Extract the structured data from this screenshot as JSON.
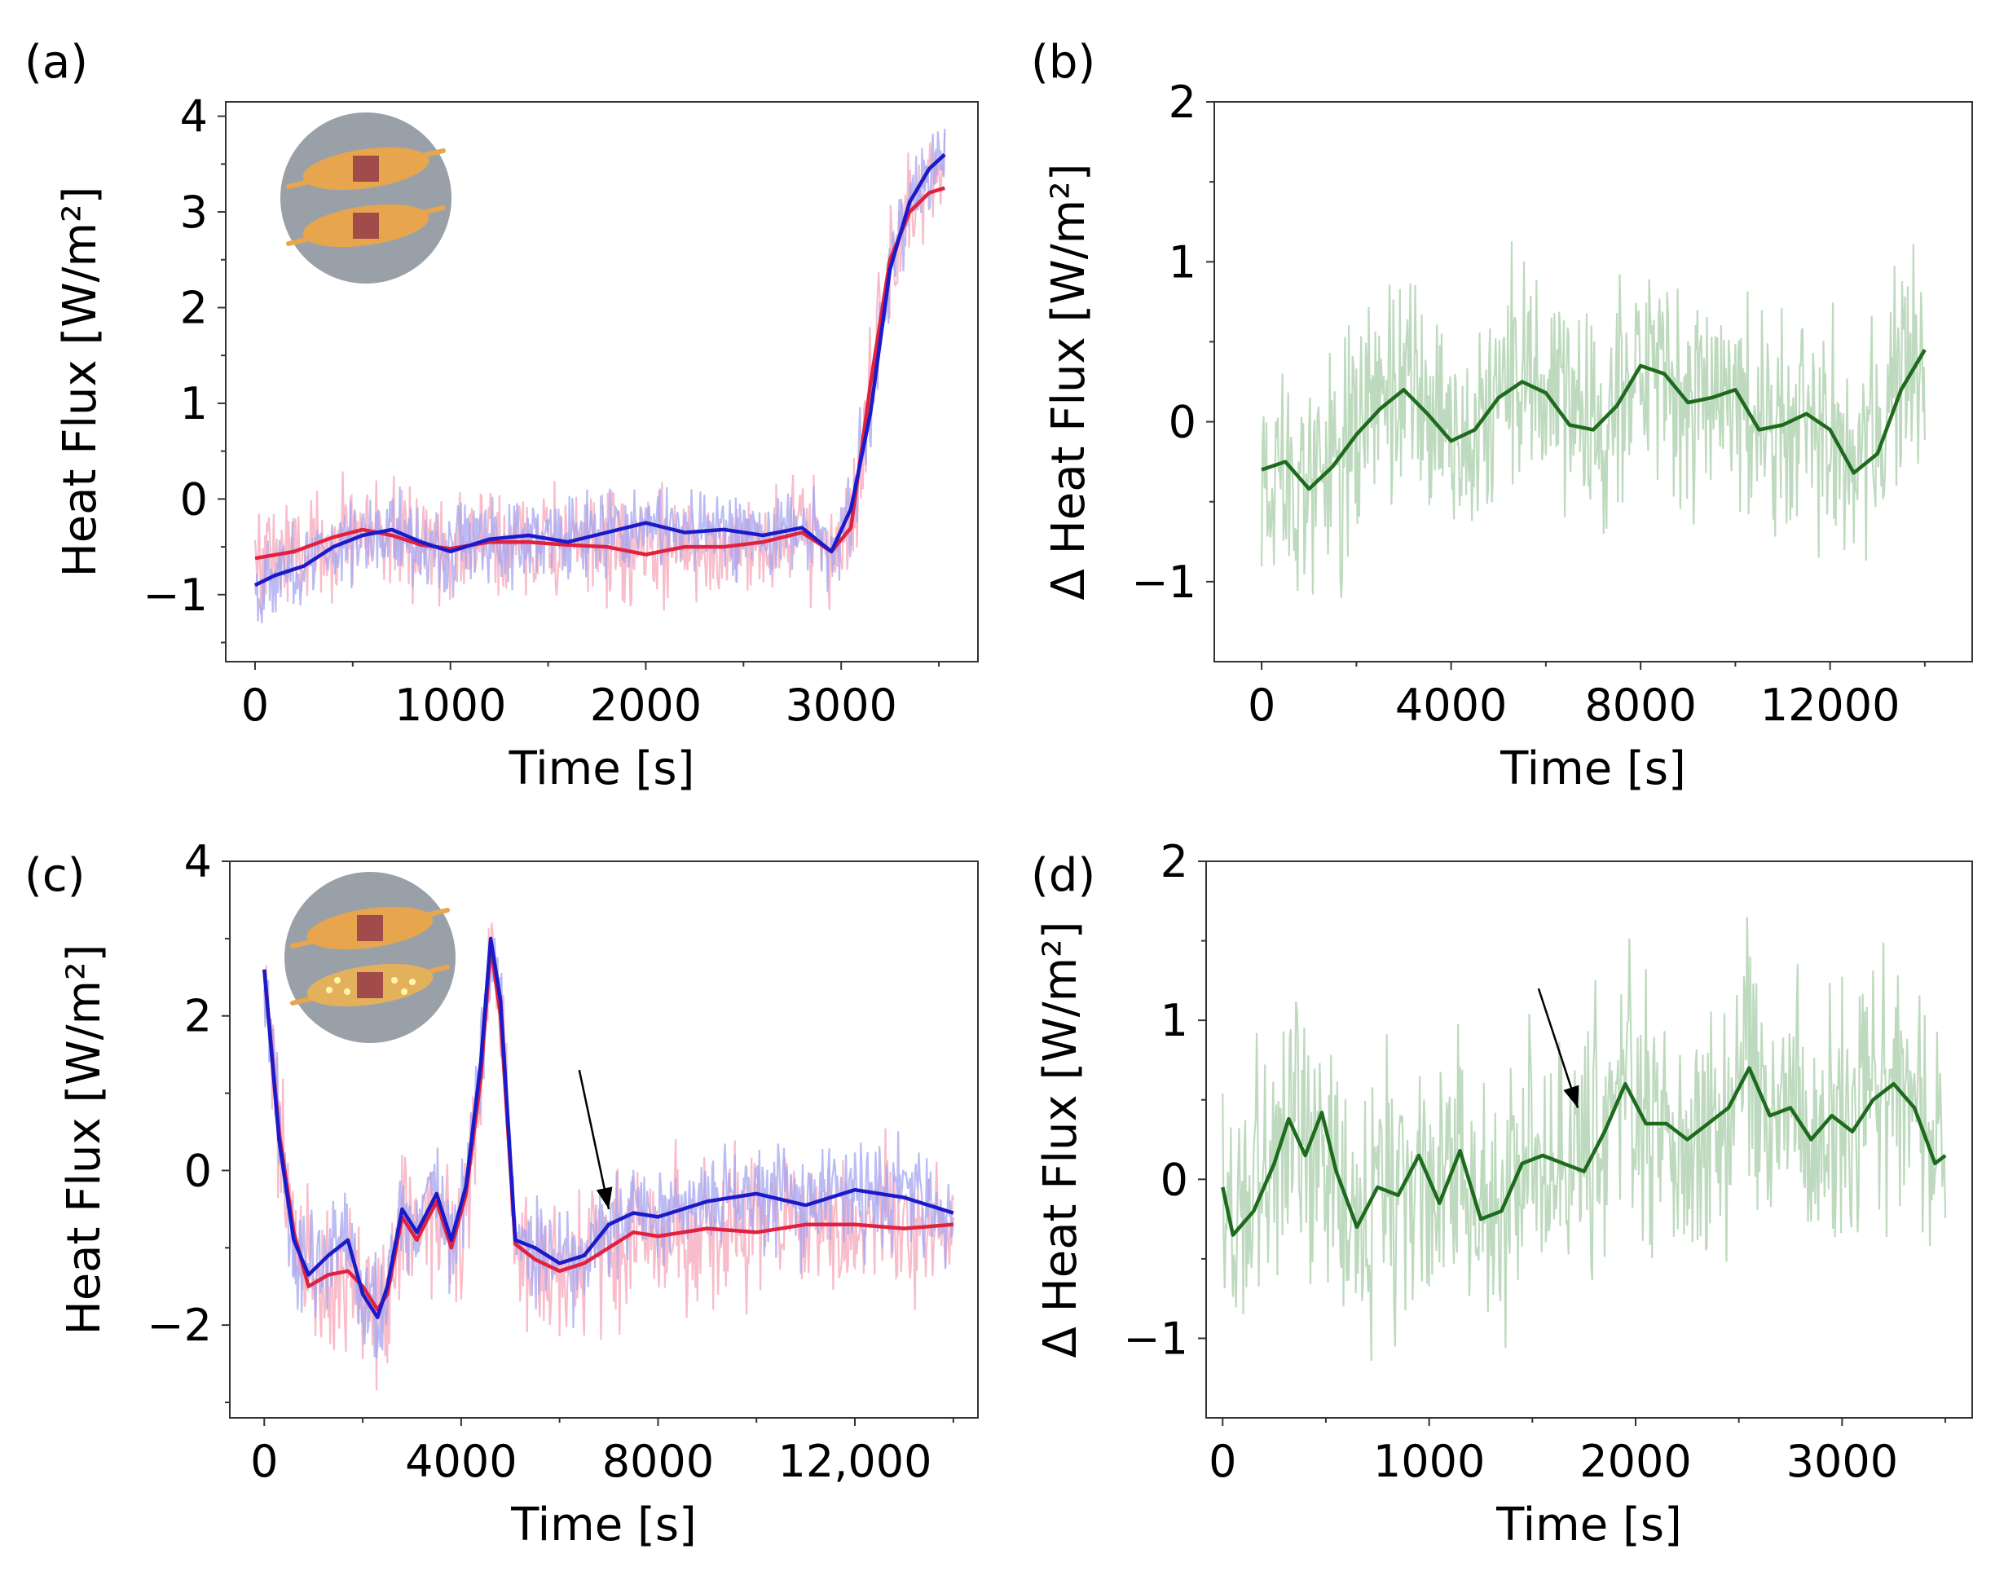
{
  "chart_data": [
    {
      "id": "a",
      "panel_label": "(a)",
      "type": "line",
      "xlabel": "Time [s]",
      "ylabel": "Heat Flux [W/m²]",
      "xlim": [
        -150,
        3700
      ],
      "ylim": [
        -1.7,
        4.15
      ],
      "xticks": [
        0,
        1000,
        2000,
        3000
      ],
      "xtick_labels": [
        "0",
        "1000",
        "2000",
        "3000"
      ],
      "yticks": [
        -1,
        0,
        1,
        2,
        3,
        4
      ],
      "ytick_labels": [
        "−1",
        "0",
        "1",
        "2",
        "3",
        "4"
      ],
      "grid": false,
      "inset": {
        "kind": "two-identical-sensors",
        "position": "top-left"
      },
      "series": [
        {
          "color": "#e0213f",
          "raw_color": "#f5a6b8",
          "noise": 0.28,
          "x": [
            0,
            200,
            400,
            550,
            700,
            850,
            1000,
            1200,
            1400,
            1600,
            1800,
            2000,
            2200,
            2400,
            2600,
            2800,
            2950,
            3050,
            3150,
            3250,
            3350,
            3450,
            3530
          ],
          "y": [
            -0.62,
            -0.55,
            -0.4,
            -0.32,
            -0.38,
            -0.48,
            -0.52,
            -0.45,
            -0.45,
            -0.48,
            -0.5,
            -0.58,
            -0.5,
            -0.5,
            -0.45,
            -0.35,
            -0.55,
            -0.3,
            1.2,
            2.5,
            3.0,
            3.2,
            3.25
          ]
        },
        {
          "color": "#1a1ac8",
          "raw_color": "#a6a6f0",
          "noise": 0.22,
          "x": [
            0,
            100,
            250,
            400,
            550,
            700,
            850,
            1000,
            1200,
            1400,
            1600,
            1800,
            2000,
            2200,
            2400,
            2600,
            2800,
            2950,
            3050,
            3150,
            3250,
            3350,
            3450,
            3530
          ],
          "y": [
            -0.9,
            -0.8,
            -0.7,
            -0.5,
            -0.38,
            -0.32,
            -0.45,
            -0.55,
            -0.42,
            -0.38,
            -0.45,
            -0.35,
            -0.25,
            -0.35,
            -0.32,
            -0.38,
            -0.3,
            -0.55,
            -0.1,
            0.9,
            2.4,
            3.1,
            3.45,
            3.6
          ]
        }
      ]
    },
    {
      "id": "b",
      "panel_label": "(b)",
      "type": "line",
      "xlabel": "Time [s]",
      "ylabel": "Δ Heat Flux [W/m²]",
      "xlim": [
        -1000,
        15000
      ],
      "ylim": [
        -1.5,
        2.0
      ],
      "xticks": [
        0,
        4000,
        8000,
        12000
      ],
      "xtick_labels": [
        "0",
        "4000",
        "8000",
        "12000"
      ],
      "yticks": [
        -1,
        0,
        1,
        2
      ],
      "ytick_labels": [
        "−1",
        "0",
        "1",
        "2"
      ],
      "grid": false,
      "series": [
        {
          "color": "#1e6b1e",
          "raw_color": "#a8cea8",
          "noise": 0.35,
          "x": [
            0,
            500,
            1000,
            1500,
            2000,
            2500,
            3000,
            3500,
            4000,
            4500,
            5000,
            5500,
            6000,
            6500,
            7000,
            7500,
            8000,
            8500,
            9000,
            9500,
            10000,
            10500,
            11000,
            11500,
            12000,
            12500,
            13000,
            13500,
            14000
          ],
          "y": [
            -0.3,
            -0.25,
            -0.42,
            -0.28,
            -0.08,
            0.08,
            0.2,
            0.05,
            -0.12,
            -0.05,
            0.15,
            0.25,
            0.18,
            -0.02,
            -0.05,
            0.1,
            0.35,
            0.3,
            0.12,
            0.15,
            0.2,
            -0.05,
            -0.02,
            0.05,
            -0.05,
            -0.32,
            -0.2,
            0.2,
            0.45
          ]
        }
      ]
    },
    {
      "id": "c",
      "panel_label": "(c)",
      "type": "line",
      "xlabel": "Time [s]",
      "ylabel": "Heat Flux [W/m²]",
      "xlim": [
        -700,
        14500
      ],
      "ylim": [
        -3.2,
        4.0
      ],
      "xticks": [
        0,
        4000,
        8000,
        12000
      ],
      "xtick_labels": [
        "0",
        "4000",
        "8000",
        "12,000"
      ],
      "yticks": [
        -2,
        0,
        2,
        4
      ],
      "ytick_labels": [
        "−2",
        "0",
        "2",
        "4"
      ],
      "grid": false,
      "inset": {
        "kind": "sensor-pair-one-perforated",
        "position": "top-left"
      },
      "annotations": [
        {
          "kind": "arrow",
          "from": [
            6400,
            1.3
          ],
          "to": [
            7000,
            -0.5
          ]
        }
      ],
      "series": [
        {
          "color": "#e0213f",
          "raw_color": "#f5a6b8",
          "noise": 0.45,
          "x": [
            0,
            300,
            600,
            900,
            1300,
            1700,
            2000,
            2300,
            2500,
            2800,
            3100,
            3500,
            3800,
            4100,
            4400,
            4600,
            4800,
            5100,
            5500,
            6000,
            6500,
            7000,
            7500,
            8000,
            9000,
            10000,
            11000,
            12000,
            13000,
            14000
          ],
          "y": [
            2.6,
            0.5,
            -0.8,
            -1.5,
            -1.35,
            -1.3,
            -1.5,
            -1.8,
            -1.6,
            -0.6,
            -0.9,
            -0.4,
            -1.0,
            -0.3,
            1.2,
            2.9,
            2.0,
            -0.95,
            -1.15,
            -1.3,
            -1.2,
            -1.0,
            -0.8,
            -0.85,
            -0.75,
            -0.8,
            -0.7,
            -0.7,
            -0.75,
            -0.7
          ]
        },
        {
          "color": "#1a1ac8",
          "raw_color": "#a6a6f0",
          "noise": 0.35,
          "x": [
            0,
            300,
            600,
            900,
            1300,
            1700,
            2000,
            2300,
            2500,
            2800,
            3100,
            3500,
            3800,
            4100,
            4400,
            4600,
            4800,
            5100,
            5500,
            6000,
            6500,
            7000,
            7500,
            8000,
            9000,
            10000,
            11000,
            12000,
            13000,
            14000
          ],
          "y": [
            2.6,
            0.4,
            -0.9,
            -1.35,
            -1.1,
            -0.9,
            -1.6,
            -1.9,
            -1.5,
            -0.5,
            -0.8,
            -0.3,
            -0.9,
            -0.2,
            1.4,
            3.0,
            2.2,
            -0.9,
            -1.0,
            -1.2,
            -1.1,
            -0.7,
            -0.55,
            -0.6,
            -0.4,
            -0.3,
            -0.45,
            -0.25,
            -0.35,
            -0.55
          ]
        }
      ]
    },
    {
      "id": "d",
      "panel_label": "(d)",
      "type": "line",
      "xlabel": "Time [s]",
      "ylabel": "Δ Heat Flux [W/m²]",
      "xlim": [
        -80,
        3630
      ],
      "ylim": [
        -1.5,
        2.0
      ],
      "xticks": [
        0,
        1000,
        2000,
        3000
      ],
      "xtick_labels": [
        "0",
        "1000",
        "2000",
        "3000"
      ],
      "yticks": [
        -1,
        0,
        1,
        2
      ],
      "ytick_labels": [
        "−1",
        "0",
        "1",
        "2"
      ],
      "grid": false,
      "annotations": [
        {
          "kind": "arrow",
          "from": [
            1530,
            1.2
          ],
          "to": [
            1720,
            0.45
          ]
        }
      ],
      "series": [
        {
          "color": "#1e6b1e",
          "raw_color": "#a8cea8",
          "noise": 0.4,
          "x": [
            0,
            50,
            150,
            250,
            320,
            400,
            480,
            550,
            650,
            750,
            850,
            950,
            1050,
            1150,
            1250,
            1350,
            1450,
            1550,
            1650,
            1750,
            1850,
            1950,
            2050,
            2150,
            2250,
            2350,
            2450,
            2550,
            2650,
            2750,
            2850,
            2950,
            3050,
            3150,
            3250,
            3350,
            3450,
            3500
          ],
          "y": [
            -0.05,
            -0.35,
            -0.2,
            0.1,
            0.38,
            0.15,
            0.42,
            0.05,
            -0.3,
            -0.05,
            -0.1,
            0.15,
            -0.15,
            0.18,
            -0.25,
            -0.2,
            0.1,
            0.15,
            0.1,
            0.05,
            0.3,
            0.6,
            0.35,
            0.35,
            0.25,
            0.35,
            0.45,
            0.7,
            0.4,
            0.45,
            0.25,
            0.4,
            0.3,
            0.5,
            0.6,
            0.45,
            0.1,
            0.15
          ]
        }
      ]
    }
  ]
}
